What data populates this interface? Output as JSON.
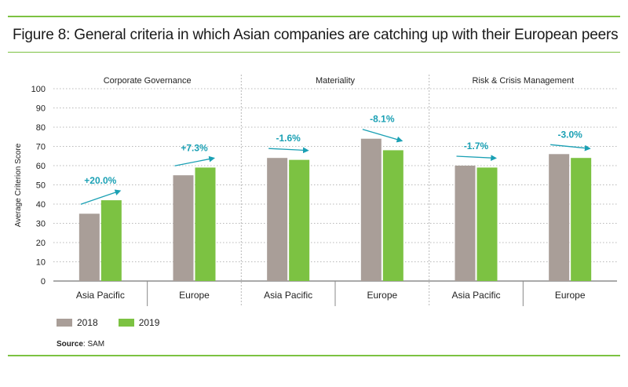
{
  "figure": {
    "title": "Figure 8: General criteria in which Asian companies are catching up with their European peers"
  },
  "colors": {
    "series_2018": "#a99e98",
    "series_2019": "#7cc242",
    "arrow": "#1aa0b4",
    "grid": "#b8b8b8",
    "accent_rule": "#7cc242"
  },
  "chart_data": {
    "type": "bar",
    "ylabel": "Average Criterion Score",
    "ylim": [
      0,
      100
    ],
    "yticks": [
      0,
      10,
      20,
      30,
      40,
      50,
      60,
      70,
      80,
      90,
      100
    ],
    "series_names": [
      "2018",
      "2019"
    ],
    "panels": [
      {
        "title": "Corporate Governance",
        "categories": [
          "Asia Pacific",
          "Europe"
        ],
        "series": [
          {
            "name": "2018",
            "values": [
              35,
              55
            ]
          },
          {
            "name": "2019",
            "values": [
              42,
              59
            ]
          }
        ],
        "changes": [
          "+20.0%",
          "+7.3%"
        ]
      },
      {
        "title": "Materiality",
        "categories": [
          "Asia Pacific",
          "Europe"
        ],
        "series": [
          {
            "name": "2018",
            "values": [
              64,
              74
            ]
          },
          {
            "name": "2019",
            "values": [
              63,
              68
            ]
          }
        ],
        "changes": [
          "-1.6%",
          "-8.1%"
        ]
      },
      {
        "title": "Risk & Crisis Management",
        "categories": [
          "Asia Pacific",
          "Europe"
        ],
        "series": [
          {
            "name": "2018",
            "values": [
              60,
              66
            ]
          },
          {
            "name": "2019",
            "values": [
              59,
              64
            ]
          }
        ],
        "changes": [
          "-1.7%",
          "-3.0%"
        ]
      }
    ],
    "legend": {
      "position": "bottom-left",
      "items": [
        "2018",
        "2019"
      ]
    },
    "grid": true
  },
  "source": {
    "label": "Source",
    "text": ": SAM"
  }
}
